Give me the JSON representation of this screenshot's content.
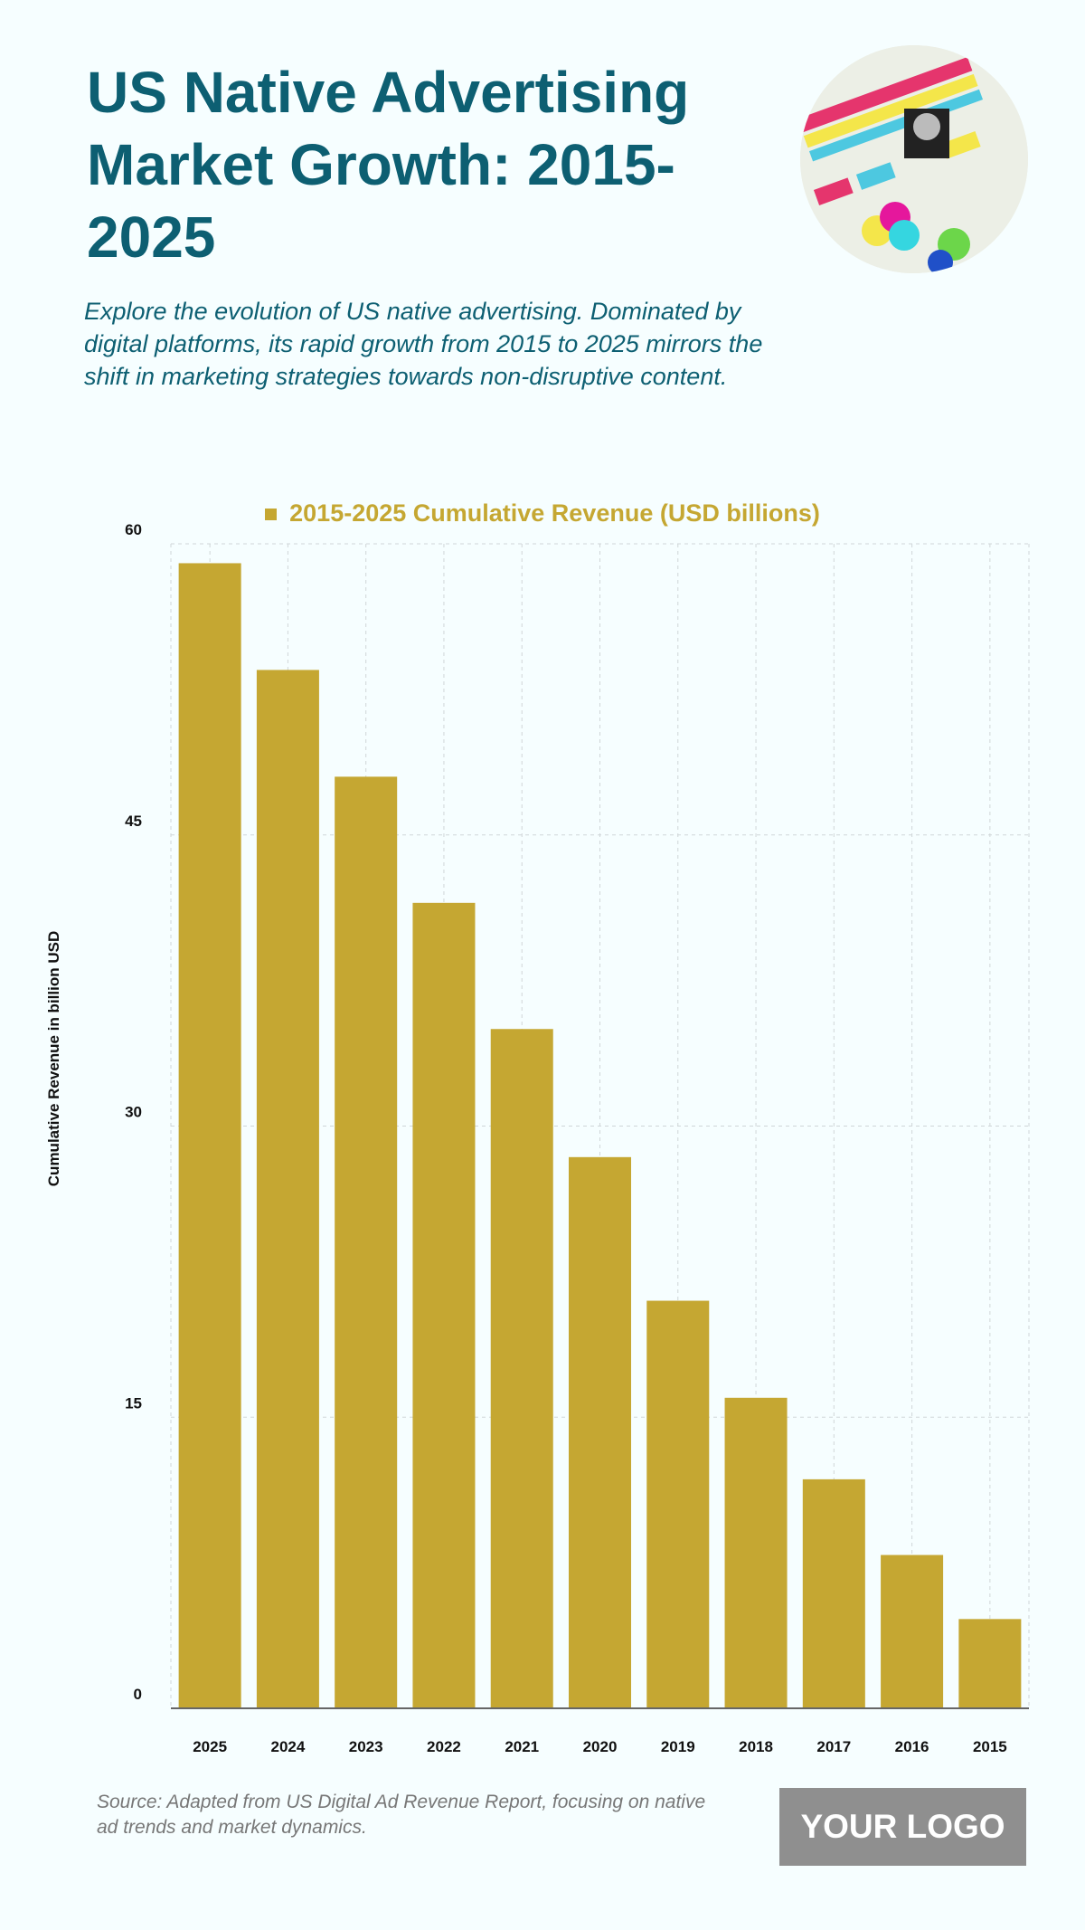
{
  "header": {
    "title": "US Native Advertising Market Growth: 2015-2025",
    "subtitle": "Explore the evolution of US native advertising. Dominated by digital platforms, its rapid growth from 2015 to 2025 mirrors the shift in marketing strategies towards non-disruptive content."
  },
  "footer": {
    "source": "Source: Adapted from US Digital Ad Revenue Report, focusing on native ad trends and market dynamics.",
    "logo": "YOUR LOGO"
  },
  "colors": {
    "bar": "#c5a732",
    "title": "#0d5f72"
  },
  "chart_data": {
    "type": "bar",
    "legend": "2015-2025 Cumulative Revenue (USD billions)",
    "ylabel": "Cumulative Revenue in billion USD",
    "xlabel": "",
    "categories": [
      "2025",
      "2024",
      "2023",
      "2022",
      "2021",
      "2020",
      "2019",
      "2018",
      "2017",
      "2016",
      "2015"
    ],
    "values": [
      59,
      53.5,
      48,
      41.5,
      35,
      28.4,
      21,
      16,
      11.8,
      7.9,
      4.6
    ],
    "ylim": [
      0,
      60
    ],
    "yticks": [
      0,
      15,
      30,
      45,
      60
    ],
    "grid": true,
    "legend_position": "top-center"
  }
}
